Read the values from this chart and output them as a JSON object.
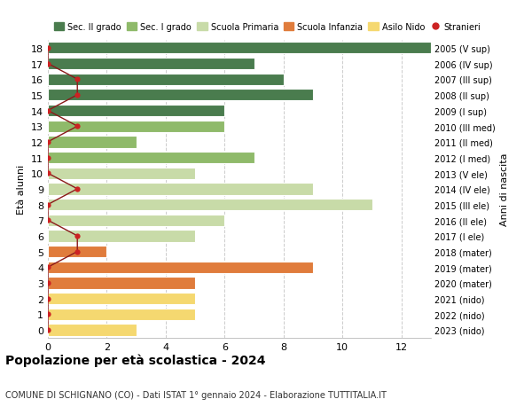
{
  "ages": [
    0,
    1,
    2,
    3,
    4,
    5,
    6,
    7,
    8,
    9,
    10,
    11,
    12,
    13,
    14,
    15,
    16,
    17,
    18
  ],
  "right_labels": [
    "2023 (nido)",
    "2022 (nido)",
    "2021 (nido)",
    "2020 (mater)",
    "2019 (mater)",
    "2018 (mater)",
    "2017 (I ele)",
    "2016 (II ele)",
    "2015 (III ele)",
    "2014 (IV ele)",
    "2013 (V ele)",
    "2012 (I med)",
    "2011 (II med)",
    "2010 (III med)",
    "2009 (I sup)",
    "2008 (II sup)",
    "2007 (III sup)",
    "2006 (IV sup)",
    "2005 (V sup)"
  ],
  "bar_values": [
    3,
    5,
    5,
    5,
    9,
    2,
    5,
    6,
    11,
    9,
    5,
    7,
    3,
    6,
    6,
    9,
    8,
    7,
    13
  ],
  "bar_colors": [
    "#f5d870",
    "#f5d870",
    "#f5d870",
    "#e07c3c",
    "#e07c3c",
    "#e07c3c",
    "#c8dba8",
    "#c8dba8",
    "#c8dba8",
    "#c8dba8",
    "#c8dba8",
    "#8fba6a",
    "#8fba6a",
    "#8fba6a",
    "#4a7c4e",
    "#4a7c4e",
    "#4a7c4e",
    "#4a7c4e",
    "#4a7c4e"
  ],
  "stranieri_x": [
    0,
    0,
    0,
    0,
    0,
    1,
    1,
    0,
    0,
    1,
    0,
    0,
    0,
    1,
    0,
    1,
    1,
    0,
    0
  ],
  "title": "Popolazione per età scolastica - 2024",
  "subtitle": "COMUNE DI SCHIGNANO (CO) - Dati ISTAT 1° gennaio 2024 - Elaborazione TUTTITALIA.IT",
  "ylabel": "Età alunni",
  "right_ylabel": "Anni di nascita",
  "xlim": [
    0,
    13
  ],
  "xticks": [
    0,
    2,
    4,
    6,
    8,
    10,
    12
  ],
  "legend_labels": [
    "Sec. II grado",
    "Sec. I grado",
    "Scuola Primaria",
    "Scuola Infanzia",
    "Asilo Nido",
    "Stranieri"
  ],
  "legend_colors": [
    "#4a7c4e",
    "#8fba6a",
    "#c8dba8",
    "#e07c3c",
    "#f5d870",
    "#cc2222"
  ],
  "bg_color": "#ffffff",
  "grid_color": "#cccccc",
  "stranieri_line_color": "#8b1a1a",
  "stranieri_dot_color": "#cc2222"
}
